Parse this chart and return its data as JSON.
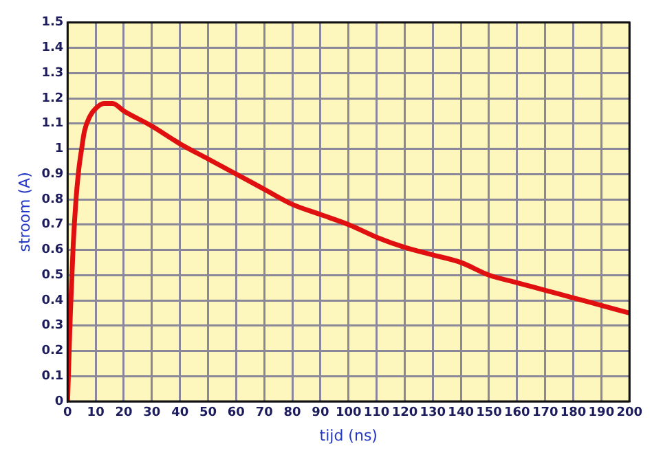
{
  "chart_data": {
    "type": "line",
    "xlabel": "tijd (ns)",
    "ylabel": "stroom (A)",
    "x": [
      0,
      1,
      2,
      3,
      4,
      5,
      6,
      8,
      10,
      13,
      16,
      20,
      30,
      40,
      50,
      60,
      70,
      80,
      90,
      100,
      110,
      120,
      130,
      140,
      150,
      160,
      170,
      180,
      190,
      200
    ],
    "series": [
      {
        "color": "#e01010",
        "values": [
          0,
          0.35,
          0.62,
          0.8,
          0.92,
          1.0,
          1.07,
          1.13,
          1.16,
          1.18,
          1.18,
          1.15,
          1.09,
          1.02,
          0.96,
          0.9,
          0.84,
          0.78,
          0.74,
          0.7,
          0.65,
          0.61,
          0.58,
          0.55,
          0.5,
          0.47,
          0.44,
          0.41,
          0.38,
          0.35
        ]
      }
    ],
    "xlim": [
      0,
      200
    ],
    "xticks": [
      0,
      10,
      20,
      30,
      40,
      50,
      60,
      70,
      80,
      90,
      100,
      110,
      120,
      130,
      140,
      150,
      160,
      170,
      180,
      190,
      200
    ],
    "ylim": [
      0,
      1.5
    ],
    "yticks": [
      0,
      0.1,
      0.2,
      0.3,
      0.4,
      0.5,
      0.6,
      0.7,
      0.8,
      0.9,
      1,
      1.1,
      1.2,
      1.3,
      1.4,
      1.5
    ],
    "grid": true,
    "legend": false,
    "marker": "none",
    "line_style": "solid"
  }
}
